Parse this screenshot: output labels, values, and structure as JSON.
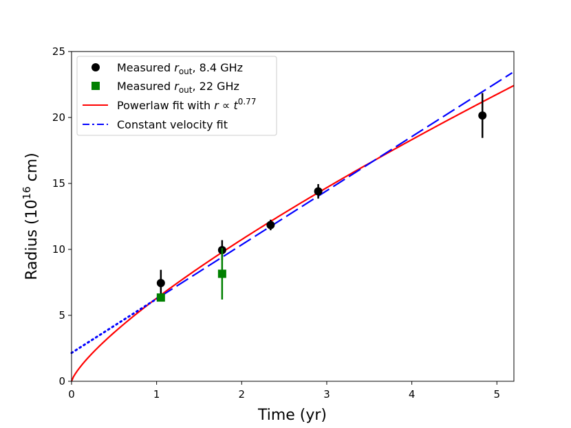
{
  "chart_data": {
    "type": "scatter",
    "title": "",
    "xlabel": "Time (yr)",
    "ylabel_parts": {
      "pre": "Radius (10",
      "sup": "16",
      "post": " cm)"
    },
    "xlim": [
      0,
      5.2
    ],
    "ylim": [
      0,
      25
    ],
    "xticks": [
      0,
      1,
      2,
      3,
      4,
      5
    ],
    "yticks": [
      0,
      5,
      10,
      15,
      20,
      25
    ],
    "grid": false,
    "legend_position": "top-left",
    "series": [
      {
        "name": "Measured r_out, 8.4 GHz",
        "kind": "points",
        "marker": "circle",
        "color": "#000000",
        "x": [
          1.05,
          1.77,
          2.34,
          2.9,
          4.83
        ],
        "y": [
          7.45,
          9.95,
          11.85,
          14.4,
          20.15
        ],
        "yerr": [
          1.0,
          0.75,
          0.4,
          0.55,
          1.7
        ]
      },
      {
        "name": "Measured r_out, 22 GHz",
        "kind": "points",
        "marker": "square",
        "color": "#008000",
        "x": [
          1.05,
          1.77
        ],
        "y": [
          6.35,
          8.15
        ],
        "yerr": [
          0.0,
          1.95
        ]
      },
      {
        "name": "Powerlaw fit with r ∝ t^0.77",
        "kind": "powerlaw",
        "color": "#ff0000",
        "coef": 6.3,
        "exponent": 0.77,
        "x_range": [
          0,
          5.2
        ]
      },
      {
        "name": "Constant velocity fit",
        "kind": "linear",
        "color": "#0000ff",
        "intercept": 2.15,
        "slope": 4.1,
        "dotted_range": [
          0,
          1.05
        ],
        "dashed_range": [
          1.05,
          5.18
        ]
      }
    ],
    "legend": [
      {
        "pre": "Measured ",
        "italic": "r",
        "sub": "out",
        "post": ", 8.4 GHz",
        "symbol": "circle",
        "color": "#000000"
      },
      {
        "pre": "Measured ",
        "italic": "r",
        "sub": "out",
        "post": ", 22 GHz",
        "symbol": "square",
        "color": "#008000"
      },
      {
        "pre": "Powerlaw fit with ",
        "italic": "r",
        "mid": " ∝ ",
        "italic2": "t",
        "sup": "0.77",
        "symbol": "line-solid",
        "color": "#ff0000"
      },
      {
        "pre": "Constant velocity fit",
        "symbol": "line-dashdot",
        "color": "#0000ff"
      }
    ]
  }
}
